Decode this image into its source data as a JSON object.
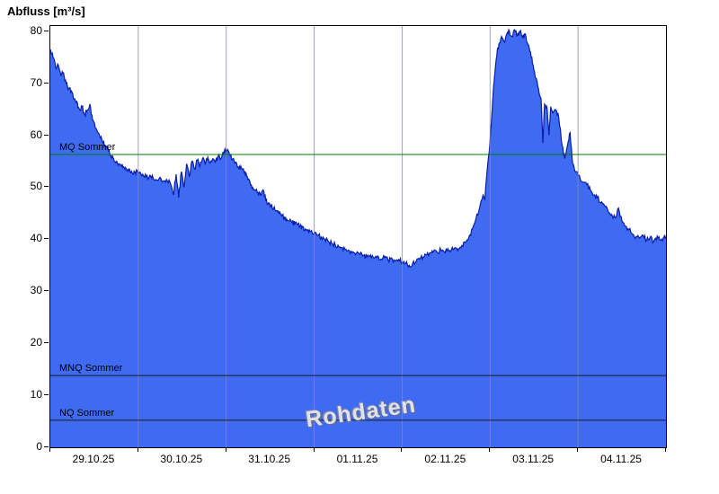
{
  "watermark": {
    "text": "Rohdaten"
  },
  "chart_data": {
    "type": "area",
    "title": "Abfluss [m³/s]",
    "ylabel": "Abfluss [m³/s]",
    "xlabel": "",
    "ylim": [
      0,
      81
    ],
    "y_ticks": [
      0,
      10,
      20,
      30,
      40,
      50,
      60,
      70,
      80
    ],
    "x_categories": [
      "29.10.25",
      "30.10.25",
      "31.10.25",
      "01.11.25",
      "02.11.25",
      "03.11.25",
      "04.11.25"
    ],
    "x_range_days": 7,
    "grid": "vertical-day-lines",
    "legend": "off",
    "colors": {
      "area_fill": "#3f6bf2",
      "line": "#0a1ea8",
      "gridline": "#8a8aa4",
      "mq_line": "#007800",
      "nq_line": "#1a1a1a"
    },
    "noise_amplitude": 0.5,
    "reference_lines": [
      {
        "label": "MQ Sommer",
        "value": 56.3,
        "color": "#007800"
      },
      {
        "label": "MNQ Sommer",
        "value": 13.8,
        "color": "#1a1a1a"
      },
      {
        "label": "NQ Sommer",
        "value": 5.2,
        "color": "#1a1a1a"
      }
    ],
    "series": [
      {
        "name": "Abfluss Rohdaten",
        "unit": "m³/s",
        "points": [
          [
            0.0,
            76.5
          ],
          [
            0.03,
            75.0
          ],
          [
            0.06,
            73.0
          ],
          [
            0.09,
            73.5
          ],
          [
            0.12,
            71.5
          ],
          [
            0.15,
            72.0
          ],
          [
            0.18,
            70.0
          ],
          [
            0.21,
            69.0
          ],
          [
            0.24,
            68.5
          ],
          [
            0.27,
            67.0
          ],
          [
            0.3,
            66.5
          ],
          [
            0.33,
            65.0
          ],
          [
            0.36,
            65.5
          ],
          [
            0.39,
            64.0
          ],
          [
            0.42,
            64.8
          ],
          [
            0.45,
            66.0
          ],
          [
            0.48,
            63.0
          ],
          [
            0.51,
            61.5
          ],
          [
            0.54,
            60.5
          ],
          [
            0.57,
            59.5
          ],
          [
            0.6,
            58.5
          ],
          [
            0.63,
            58.0
          ],
          [
            0.66,
            57.0
          ],
          [
            0.69,
            56.0
          ],
          [
            0.72,
            55.5
          ],
          [
            0.75,
            55.0
          ],
          [
            0.78,
            54.5
          ],
          [
            0.81,
            54.0
          ],
          [
            0.84,
            53.8
          ],
          [
            0.87,
            53.2
          ],
          [
            0.9,
            53.5
          ],
          [
            0.93,
            52.8
          ],
          [
            0.96,
            53.0
          ],
          [
            1.0,
            52.8
          ],
          [
            1.04,
            52.2
          ],
          [
            1.08,
            52.5
          ],
          [
            1.12,
            51.8
          ],
          [
            1.16,
            52.3
          ],
          [
            1.2,
            51.5
          ],
          [
            1.24,
            51.8
          ],
          [
            1.28,
            51.2
          ],
          [
            1.32,
            51.5
          ],
          [
            1.36,
            51.0
          ],
          [
            1.4,
            48.5
          ],
          [
            1.43,
            52.5
          ],
          [
            1.46,
            48.0
          ],
          [
            1.49,
            53.0
          ],
          [
            1.52,
            50.0
          ],
          [
            1.55,
            54.5
          ],
          [
            1.58,
            52.0
          ],
          [
            1.61,
            55.0
          ],
          [
            1.64,
            53.5
          ],
          [
            1.67,
            55.2
          ],
          [
            1.7,
            54.0
          ],
          [
            1.73,
            55.5
          ],
          [
            1.76,
            54.5
          ],
          [
            1.79,
            55.8
          ],
          [
            1.82,
            54.8
          ],
          [
            1.85,
            55.5
          ],
          [
            1.88,
            55.0
          ],
          [
            1.91,
            56.0
          ],
          [
            1.94,
            55.5
          ],
          [
            1.97,
            56.5
          ],
          [
            2.0,
            57.2
          ],
          [
            2.03,
            56.8
          ],
          [
            2.06,
            55.5
          ],
          [
            2.09,
            55.0
          ],
          [
            2.12,
            54.5
          ],
          [
            2.15,
            54.0
          ],
          [
            2.18,
            53.5
          ],
          [
            2.21,
            53.0
          ],
          [
            2.24,
            52.0
          ],
          [
            2.27,
            51.0
          ],
          [
            2.3,
            50.0
          ],
          [
            2.33,
            49.5
          ],
          [
            2.36,
            49.0
          ],
          [
            2.39,
            48.5
          ],
          [
            2.42,
            49.5
          ],
          [
            2.45,
            47.5
          ],
          [
            2.48,
            47.0
          ],
          [
            2.51,
            46.5
          ],
          [
            2.54,
            46.0
          ],
          [
            2.57,
            45.5
          ],
          [
            2.6,
            45.0
          ],
          [
            2.63,
            44.5
          ],
          [
            2.66,
            44.2
          ],
          [
            2.69,
            43.8
          ],
          [
            2.72,
            43.5
          ],
          [
            2.75,
            43.2
          ],
          [
            2.78,
            43.0
          ],
          [
            2.81,
            42.8
          ],
          [
            2.84,
            42.5
          ],
          [
            2.87,
            42.3
          ],
          [
            2.9,
            42.0
          ],
          [
            2.93,
            41.8
          ],
          [
            2.96,
            41.5
          ],
          [
            3.0,
            41.2
          ],
          [
            3.04,
            40.8
          ],
          [
            3.08,
            40.4
          ],
          [
            3.12,
            40.0
          ],
          [
            3.16,
            39.6
          ],
          [
            3.2,
            39.2
          ],
          [
            3.24,
            38.9
          ],
          [
            3.28,
            38.6
          ],
          [
            3.32,
            38.4
          ],
          [
            3.36,
            38.1
          ],
          [
            3.4,
            37.8
          ],
          [
            3.44,
            37.6
          ],
          [
            3.48,
            37.3
          ],
          [
            3.52,
            37.1
          ],
          [
            3.56,
            36.9
          ],
          [
            3.6,
            36.6
          ],
          [
            3.64,
            37.0
          ],
          [
            3.68,
            36.4
          ],
          [
            3.72,
            36.8
          ],
          [
            3.76,
            36.2
          ],
          [
            3.8,
            36.5
          ],
          [
            3.84,
            36.0
          ],
          [
            3.88,
            36.4
          ],
          [
            3.92,
            35.8
          ],
          [
            3.96,
            36.1
          ],
          [
            4.0,
            35.6
          ],
          [
            4.04,
            35.3
          ],
          [
            4.08,
            35.0
          ],
          [
            4.12,
            35.4
          ],
          [
            4.16,
            35.8
          ],
          [
            4.2,
            36.2
          ],
          [
            4.24,
            36.6
          ],
          [
            4.28,
            37.0
          ],
          [
            4.32,
            37.4
          ],
          [
            4.36,
            37.8
          ],
          [
            4.4,
            37.4
          ],
          [
            4.44,
            38.0
          ],
          [
            4.48,
            37.6
          ],
          [
            4.52,
            38.2
          ],
          [
            4.56,
            38.0
          ],
          [
            4.6,
            38.4
          ],
          [
            4.64,
            38.2
          ],
          [
            4.68,
            38.8
          ],
          [
            4.72,
            39.4
          ],
          [
            4.76,
            40.5
          ],
          [
            4.8,
            42.0
          ],
          [
            4.84,
            44.0
          ],
          [
            4.88,
            46.0
          ],
          [
            4.92,
            48.5
          ],
          [
            4.94,
            47.5
          ],
          [
            4.96,
            52.0
          ],
          [
            5.0,
            59.0
          ],
          [
            5.02,
            64.0
          ],
          [
            5.04,
            69.5
          ],
          [
            5.06,
            73.0
          ],
          [
            5.08,
            76.0
          ],
          [
            5.1,
            77.5
          ],
          [
            5.13,
            79.0
          ],
          [
            5.16,
            78.0
          ],
          [
            5.19,
            79.5
          ],
          [
            5.22,
            80.0
          ],
          [
            5.25,
            79.0
          ],
          [
            5.28,
            80.3
          ],
          [
            5.31,
            79.2
          ],
          [
            5.34,
            80.0
          ],
          [
            5.37,
            78.8
          ],
          [
            5.4,
            79.5
          ],
          [
            5.43,
            77.5
          ],
          [
            5.46,
            76.0
          ],
          [
            5.49,
            73.5
          ],
          [
            5.52,
            71.0
          ],
          [
            5.55,
            69.0
          ],
          [
            5.58,
            67.0
          ],
          [
            5.6,
            58.5
          ],
          [
            5.62,
            66.0
          ],
          [
            5.65,
            65.0
          ],
          [
            5.67,
            60.0
          ],
          [
            5.69,
            65.5
          ],
          [
            5.72,
            64.5
          ],
          [
            5.75,
            64.8
          ],
          [
            5.78,
            63.5
          ],
          [
            5.82,
            58.0
          ],
          [
            5.85,
            55.5
          ],
          [
            5.88,
            58.0
          ],
          [
            5.91,
            60.5
          ],
          [
            5.94,
            54.5
          ],
          [
            5.97,
            53.0
          ],
          [
            6.0,
            52.3
          ],
          [
            6.06,
            51.0
          ],
          [
            6.1,
            50.5
          ],
          [
            6.14,
            49.5
          ],
          [
            6.18,
            48.5
          ],
          [
            6.22,
            48.0
          ],
          [
            6.26,
            47.0
          ],
          [
            6.3,
            46.5
          ],
          [
            6.34,
            45.5
          ],
          [
            6.38,
            44.8
          ],
          [
            6.42,
            44.2
          ],
          [
            6.46,
            46.0
          ],
          [
            6.5,
            43.5
          ],
          [
            6.54,
            42.5
          ],
          [
            6.58,
            41.8
          ],
          [
            6.62,
            41.0
          ],
          [
            6.66,
            40.5
          ],
          [
            6.7,
            40.2
          ],
          [
            6.74,
            40.8
          ],
          [
            6.78,
            39.8
          ],
          [
            6.82,
            40.4
          ],
          [
            6.86,
            39.6
          ],
          [
            6.9,
            40.6
          ],
          [
            6.94,
            39.8
          ],
          [
            6.98,
            40.5
          ],
          [
            7.0,
            40.2
          ]
        ]
      }
    ]
  }
}
